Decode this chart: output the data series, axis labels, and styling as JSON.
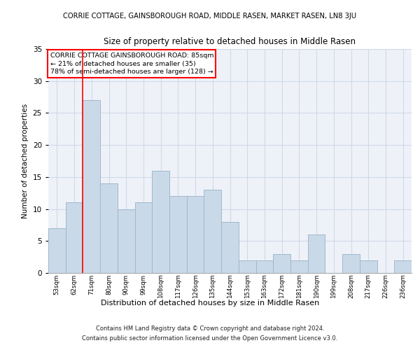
{
  "title_top": "CORRIE COTTAGE, GAINSBOROUGH ROAD, MIDDLE RASEN, MARKET RASEN, LN8 3JU",
  "title_main": "Size of property relative to detached houses in Middle Rasen",
  "xlabel": "Distribution of detached houses by size in Middle Rasen",
  "ylabel": "Number of detached properties",
  "categories": [
    "53sqm",
    "62sqm",
    "71sqm",
    "80sqm",
    "90sqm",
    "99sqm",
    "108sqm",
    "117sqm",
    "126sqm",
    "135sqm",
    "144sqm",
    "153sqm",
    "163sqm",
    "172sqm",
    "181sqm",
    "190sqm",
    "199sqm",
    "208sqm",
    "217sqm",
    "226sqm",
    "236sqm"
  ],
  "values": [
    7,
    11,
    27,
    14,
    10,
    11,
    16,
    12,
    12,
    13,
    8,
    2,
    2,
    3,
    2,
    6,
    0,
    3,
    2,
    0,
    2
  ],
  "bar_color": "#c9d9e8",
  "bar_edge_color": "#a0b8cc",
  "grid_color": "#d0d8e8",
  "background_color": "#eef2f8",
  "annotation_box_text": "CORRIE COTTAGE GAINSBOROUGH ROAD: 85sqm\n← 21% of detached houses are smaller (35)\n78% of semi-detached houses are larger (128) →",
  "redline_x": 1.5,
  "ylim": [
    0,
    35
  ],
  "yticks": [
    0,
    5,
    10,
    15,
    20,
    25,
    30,
    35
  ],
  "footer1": "Contains HM Land Registry data © Crown copyright and database right 2024.",
  "footer2": "Contains public sector information licensed under the Open Government Licence v3.0."
}
